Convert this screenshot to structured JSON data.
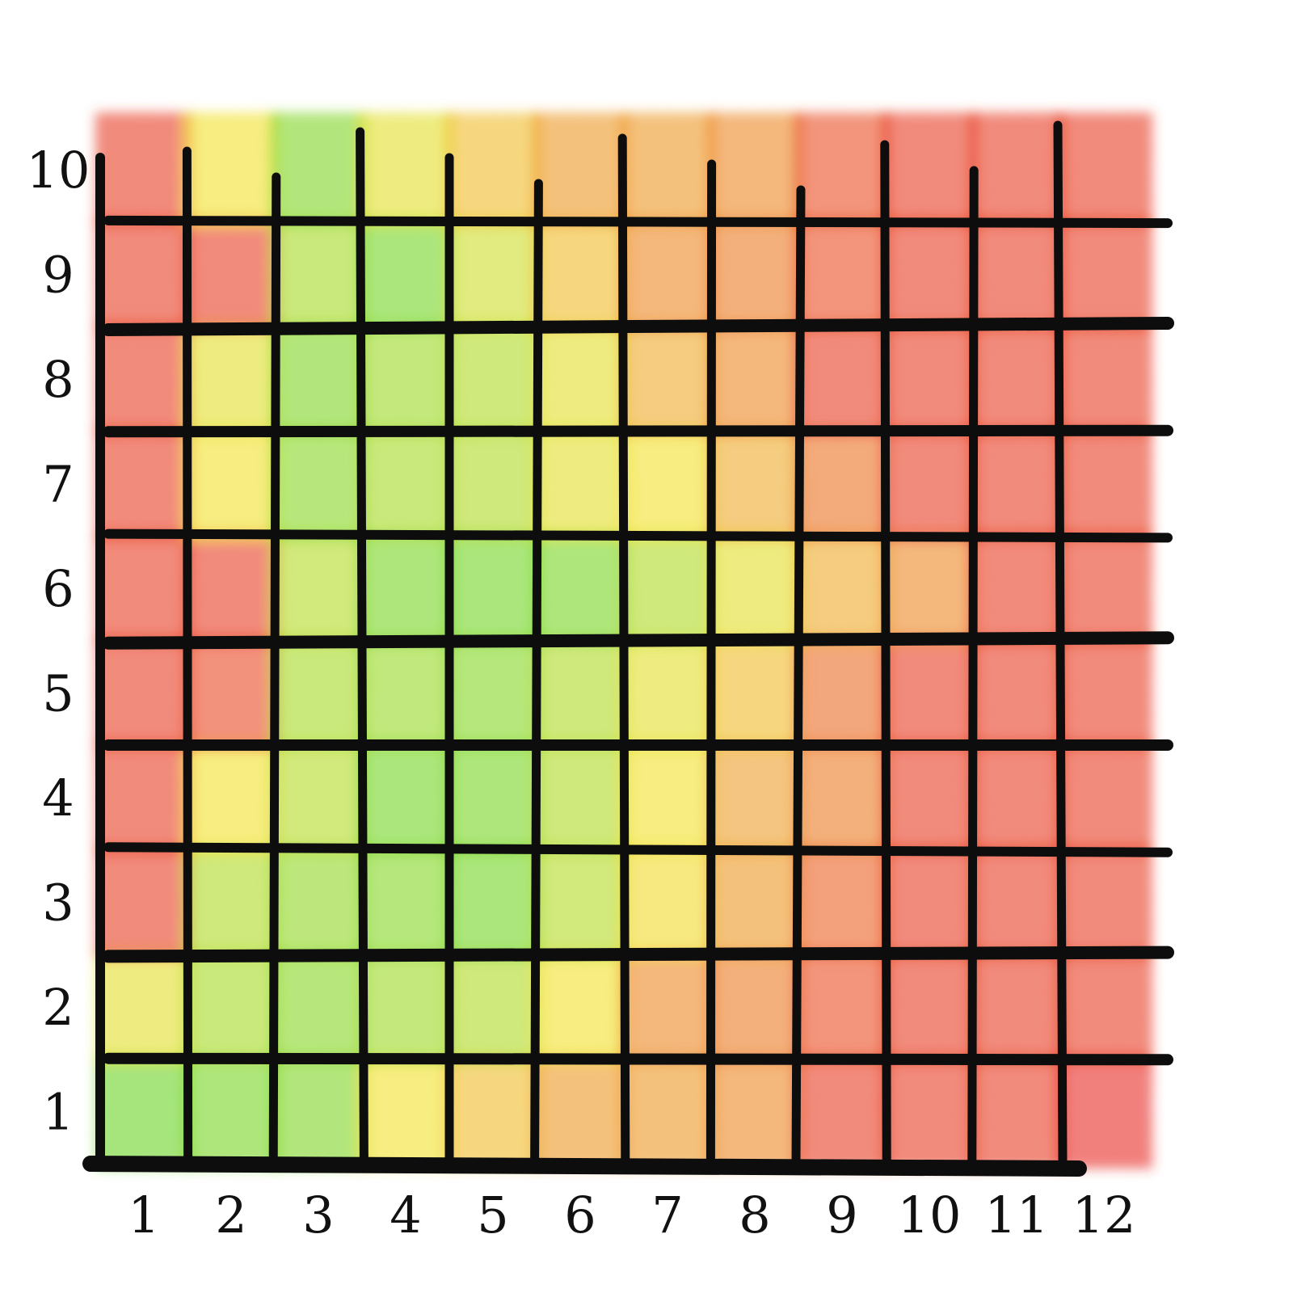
{
  "chart_data": {
    "type": "heatmap",
    "title": "",
    "xlabel": "",
    "ylabel": "",
    "x_ticks": [
      "1",
      "2",
      "3",
      "4",
      "5",
      "6",
      "7",
      "8",
      "9",
      "10",
      "11",
      "12"
    ],
    "y_ticks": [
      "1",
      "2",
      "3",
      "4",
      "5",
      "6",
      "7",
      "8",
      "9",
      "10"
    ],
    "xlim": [
      0,
      12
    ],
    "ylim": [
      0,
      10
    ],
    "grid": true,
    "color_scale": {
      "low": "#e8312a",
      "mid": "#f2e233",
      "high": "#5fd42a",
      "range": [
        0,
        1
      ]
    },
    "rows_bottom_to_top": [
      [
        0.95,
        0.9,
        0.88,
        0.5,
        0.4,
        0.3,
        0.3,
        0.25,
        0.05,
        0.05,
        0.05,
        0.0
      ],
      [
        0.55,
        0.75,
        0.85,
        0.78,
        0.72,
        0.5,
        0.25,
        0.22,
        0.1,
        0.05,
        0.05,
        0.05
      ],
      [
        0.05,
        0.72,
        0.82,
        0.86,
        0.92,
        0.7,
        0.48,
        0.3,
        0.15,
        0.05,
        0.05,
        0.05
      ],
      [
        0.05,
        0.5,
        0.7,
        0.92,
        0.9,
        0.72,
        0.5,
        0.32,
        0.22,
        0.05,
        0.05,
        0.05
      ],
      [
        0.05,
        0.08,
        0.75,
        0.8,
        0.86,
        0.72,
        0.55,
        0.4,
        0.18,
        0.05,
        0.05,
        0.05
      ],
      [
        0.05,
        0.05,
        0.7,
        0.9,
        0.92,
        0.9,
        0.72,
        0.55,
        0.35,
        0.25,
        0.05,
        0.05
      ],
      [
        0.05,
        0.5,
        0.85,
        0.75,
        0.72,
        0.55,
        0.5,
        0.35,
        0.2,
        0.05,
        0.05,
        0.05
      ],
      [
        0.05,
        0.55,
        0.88,
        0.78,
        0.72,
        0.55,
        0.35,
        0.25,
        0.05,
        0.05,
        0.05,
        0.05
      ],
      [
        0.05,
        0.05,
        0.75,
        0.92,
        0.62,
        0.4,
        0.25,
        0.22,
        0.1,
        0.05,
        0.05,
        0.05
      ],
      [
        0.05,
        0.5,
        0.88,
        0.55,
        0.4,
        0.3,
        0.3,
        0.25,
        0.1,
        0.05,
        0.05,
        0.05
      ]
    ]
  }
}
